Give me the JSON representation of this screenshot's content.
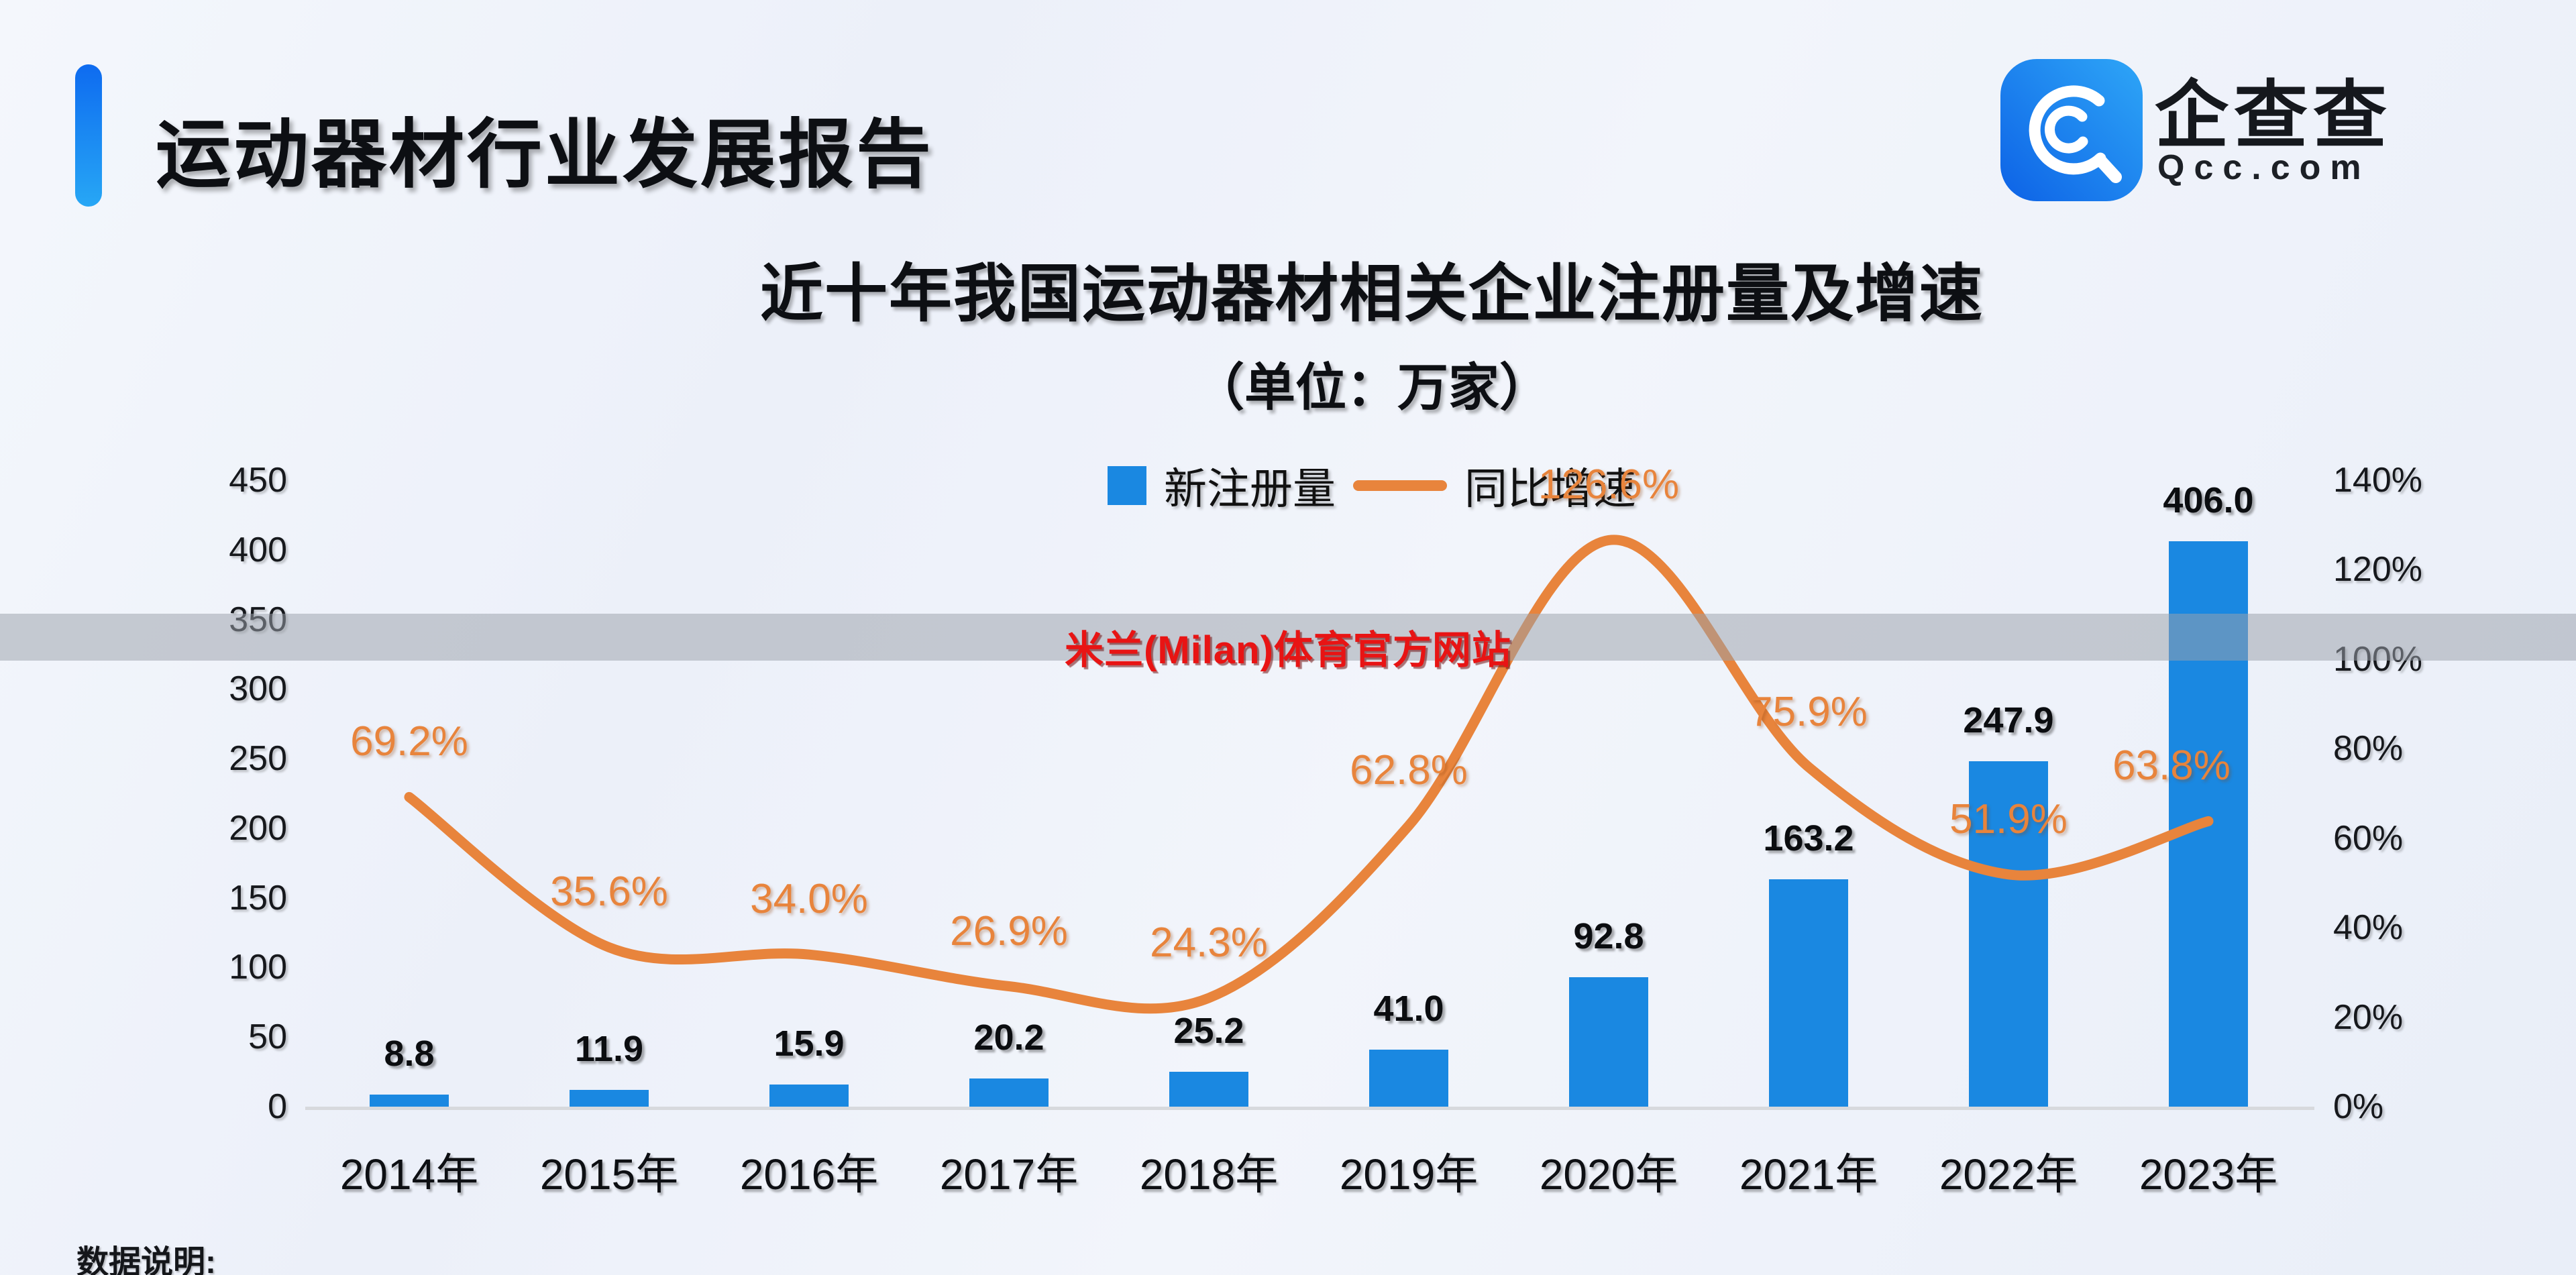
{
  "header": {
    "title": "运动器材行业发展报告"
  },
  "logo": {
    "brand": "企查查",
    "domain": "Qcc.com",
    "icon": "qcc-magnifier-icon"
  },
  "watermark": {
    "text": "米兰(Milan)体育官方网站"
  },
  "footer": {
    "note": "数据说明:"
  },
  "colors": {
    "bar_blue": "#1a88e1",
    "line_orange": "#e8843c",
    "watermark_red": "#e81414",
    "accent_blue": "#1173f0",
    "band_gray": "rgba(156,161,171,0.52)"
  },
  "chart_data": {
    "type": "bar+line",
    "title": "近十年我国运动器材相关企业注册量及增速",
    "subtitle": "（单位：万家）",
    "categories": [
      "2014年",
      "2015年",
      "2016年",
      "2017年",
      "2018年",
      "2019年",
      "2020年",
      "2021年",
      "2022年",
      "2023年"
    ],
    "series": [
      {
        "name": "新注册量",
        "type": "bar",
        "color": "#1a88e1",
        "unit": "万家",
        "values": [
          8.8,
          11.9,
          15.9,
          20.2,
          25.2,
          41.0,
          92.8,
          163.2,
          247.9,
          406.0
        ],
        "labels": [
          "8.8",
          "11.9",
          "15.9",
          "20.2",
          "25.2",
          "41.0",
          "92.8",
          "163.2",
          "247.9",
          "406.0"
        ]
      },
      {
        "name": "同比增速",
        "type": "line",
        "color": "#e8843c",
        "unit": "%",
        "values": [
          69.2,
          35.6,
          34.0,
          26.9,
          24.3,
          62.8,
          126.6,
          75.9,
          51.9,
          63.8
        ],
        "labels": [
          "69.2%",
          "35.6%",
          "34.0%",
          "26.9%",
          "24.3%",
          "62.8%",
          "126.6%",
          "75.9%",
          "51.9%",
          "63.8%"
        ]
      }
    ],
    "left_axis": {
      "ticks": [
        450,
        400,
        350,
        300,
        250,
        200,
        150,
        100,
        50,
        0
      ],
      "max": 450
    },
    "right_axis": {
      "ticks": [
        140,
        120,
        100,
        80,
        60,
        40,
        20,
        0
      ],
      "suffix": "%",
      "max": 140
    },
    "legend_position": "top-center",
    "grid": false
  }
}
